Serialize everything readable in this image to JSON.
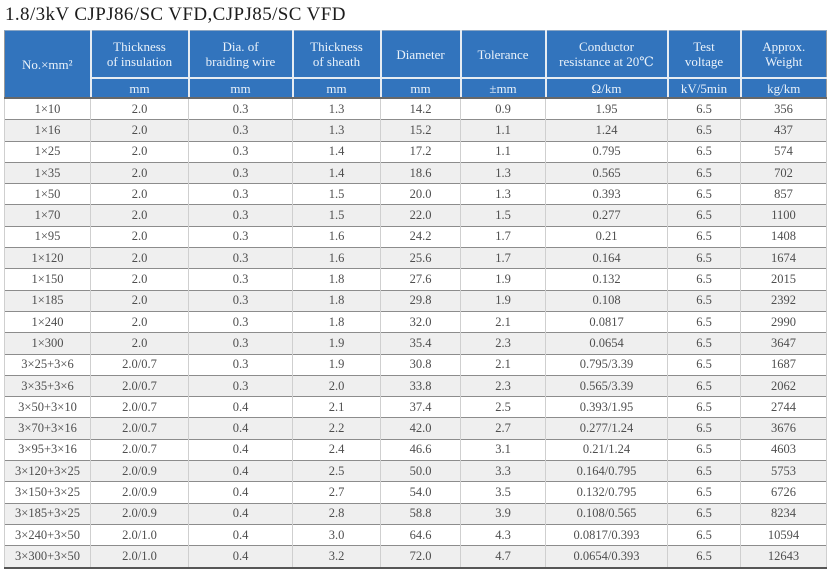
{
  "page": {
    "title": "1.8/3kV CJPJ86/SC VFD,CJPJ85/SC VFD"
  },
  "colors": {
    "header_bg": "#3274BD",
    "header_text": "#EAF2FA",
    "row_stripe": "#EFEFEF",
    "cell_text": "#4E4E4E"
  },
  "table": {
    "columns": [
      {
        "label": "No.×mm²",
        "unit": ""
      },
      {
        "label": "Thickness\nof insulation",
        "unit": "mm"
      },
      {
        "label": "Dia. of\nbraiding wire",
        "unit": "mm"
      },
      {
        "label": "Thickness\nof sheath",
        "unit": "mm"
      },
      {
        "label": "Diameter",
        "unit": "mm"
      },
      {
        "label": "Tolerance",
        "unit": "±mm"
      },
      {
        "label": "Conductor\nresistance at 20℃",
        "unit": "Ω/km"
      },
      {
        "label": "Test\nvoltage",
        "unit": "kV/5min"
      },
      {
        "label": "Approx.\nWeight",
        "unit": "kg/km"
      }
    ],
    "rows": [
      [
        "1×10",
        "2.0",
        "0.3",
        "1.3",
        "14.2",
        "0.9",
        "1.95",
        "6.5",
        "356"
      ],
      [
        "1×16",
        "2.0",
        "0.3",
        "1.3",
        "15.2",
        "1.1",
        "1.24",
        "6.5",
        "437"
      ],
      [
        "1×25",
        "2.0",
        "0.3",
        "1.4",
        "17.2",
        "1.1",
        "0.795",
        "6.5",
        "574"
      ],
      [
        "1×35",
        "2.0",
        "0.3",
        "1.4",
        "18.6",
        "1.3",
        "0.565",
        "6.5",
        "702"
      ],
      [
        "1×50",
        "2.0",
        "0.3",
        "1.5",
        "20.0",
        "1.3",
        "0.393",
        "6.5",
        "857"
      ],
      [
        "1×70",
        "2.0",
        "0.3",
        "1.5",
        "22.0",
        "1.5",
        "0.277",
        "6.5",
        "1100"
      ],
      [
        "1×95",
        "2.0",
        "0.3",
        "1.6",
        "24.2",
        "1.7",
        "0.21",
        "6.5",
        "1408"
      ],
      [
        "1×120",
        "2.0",
        "0.3",
        "1.6",
        "25.6",
        "1.7",
        "0.164",
        "6.5",
        "1674"
      ],
      [
        "1×150",
        "2.0",
        "0.3",
        "1.8",
        "27.6",
        "1.9",
        "0.132",
        "6.5",
        "2015"
      ],
      [
        "1×185",
        "2.0",
        "0.3",
        "1.8",
        "29.8",
        "1.9",
        "0.108",
        "6.5",
        "2392"
      ],
      [
        "1×240",
        "2.0",
        "0.3",
        "1.8",
        "32.0",
        "2.1",
        "0.0817",
        "6.5",
        "2990"
      ],
      [
        "1×300",
        "2.0",
        "0.3",
        "1.9",
        "35.4",
        "2.3",
        "0.0654",
        "6.5",
        "3647"
      ],
      [
        "3×25+3×6",
        "2.0/0.7",
        "0.3",
        "1.9",
        "30.8",
        "2.1",
        "0.795/3.39",
        "6.5",
        "1687"
      ],
      [
        "3×35+3×6",
        "2.0/0.7",
        "0.3",
        "2.0",
        "33.8",
        "2.3",
        "0.565/3.39",
        "6.5",
        "2062"
      ],
      [
        "3×50+3×10",
        "2.0/0.7",
        "0.4",
        "2.1",
        "37.4",
        "2.5",
        "0.393/1.95",
        "6.5",
        "2744"
      ],
      [
        "3×70+3×16",
        "2.0/0.7",
        "0.4",
        "2.2",
        "42.0",
        "2.7",
        "0.277/1.24",
        "6.5",
        "3676"
      ],
      [
        "3×95+3×16",
        "2.0/0.7",
        "0.4",
        "2.4",
        "46.6",
        "3.1",
        "0.21/1.24",
        "6.5",
        "4603"
      ],
      [
        "3×120+3×25",
        "2.0/0.9",
        "0.4",
        "2.5",
        "50.0",
        "3.3",
        "0.164/0.795",
        "6.5",
        "5753"
      ],
      [
        "3×150+3×25",
        "2.0/0.9",
        "0.4",
        "2.7",
        "54.0",
        "3.5",
        "0.132/0.795",
        "6.5",
        "6726"
      ],
      [
        "3×185+3×25",
        "2.0/0.9",
        "0.4",
        "2.8",
        "58.8",
        "3.9",
        "0.108/0.565",
        "6.5",
        "8234"
      ],
      [
        "3×240+3×50",
        "2.0/1.0",
        "0.4",
        "3.0",
        "64.6",
        "4.3",
        "0.0817/0.393",
        "6.5",
        "10594"
      ],
      [
        "3×300+3×50",
        "2.0/1.0",
        "0.4",
        "3.2",
        "72.0",
        "4.7",
        "0.0654/0.393",
        "6.5",
        "12643"
      ]
    ]
  }
}
